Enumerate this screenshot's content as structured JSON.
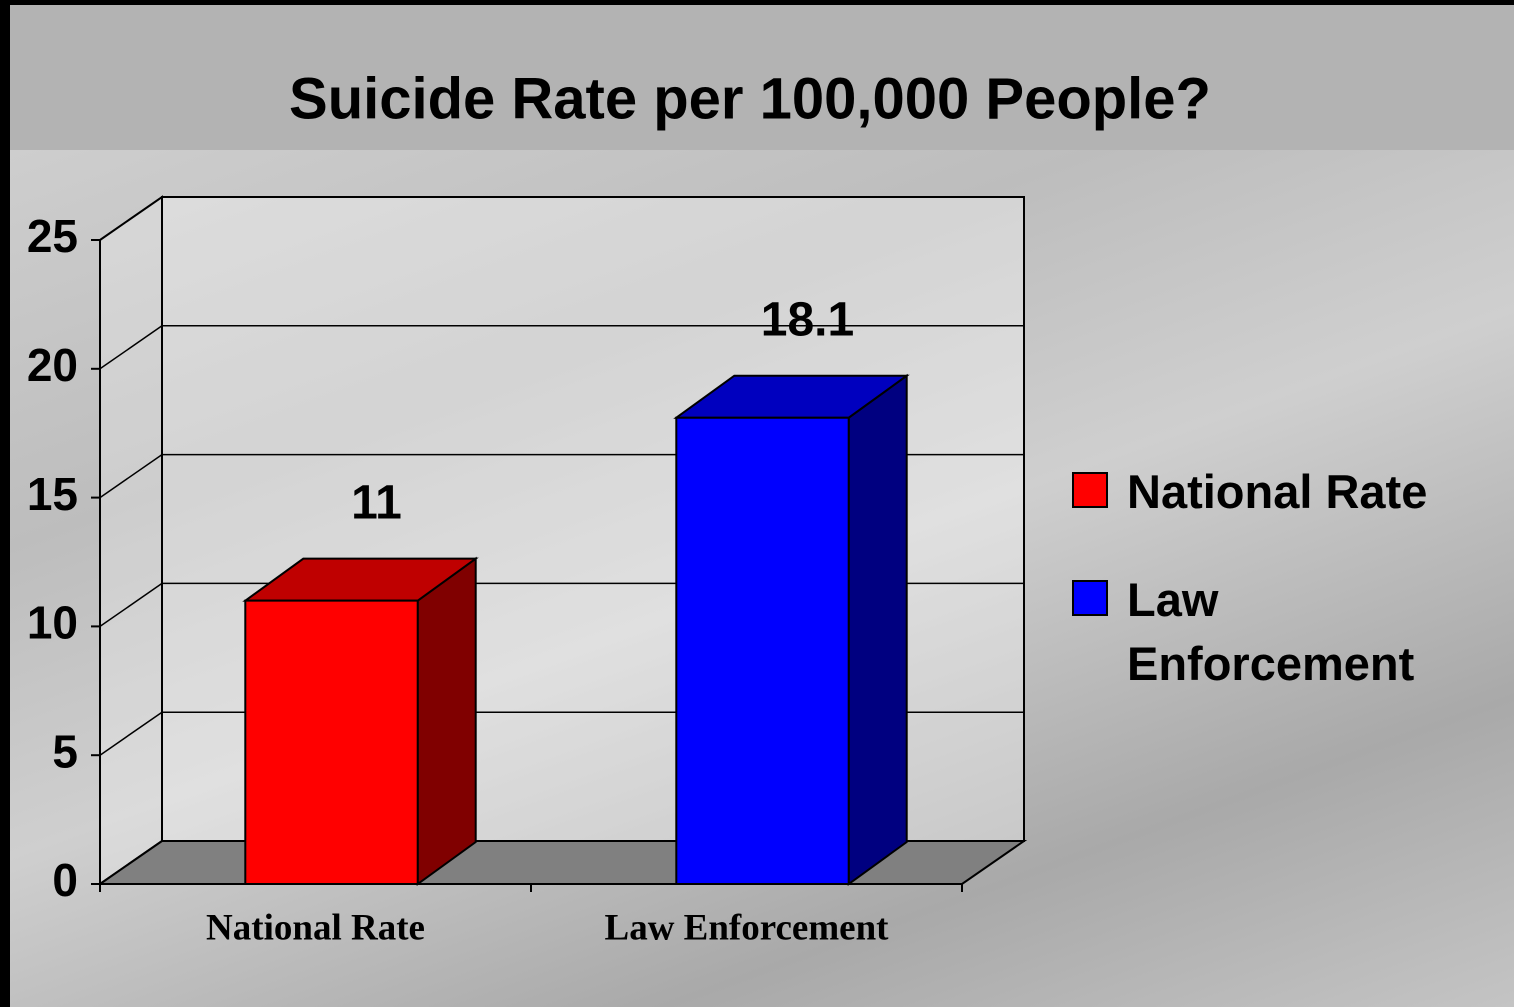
{
  "chart_data": {
    "type": "bar3d",
    "title": "Suicide Rate per 100,000 People?",
    "categories": [
      "National Rate",
      "Law Enforcement"
    ],
    "series": [
      {
        "name": "National Rate",
        "color": "#ff0000",
        "values": [
          11,
          null
        ]
      },
      {
        "name": "Law Enforcement",
        "color": "#0000ff",
        "values": [
          null,
          18.1
        ]
      }
    ],
    "ylim": [
      0,
      25
    ],
    "yticks": [
      0,
      5,
      10,
      15,
      20,
      25
    ],
    "grid": true,
    "legend": "right"
  }
}
